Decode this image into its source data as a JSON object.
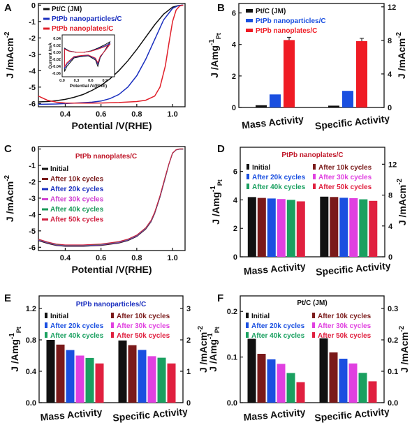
{
  "chart_data": [
    {
      "panel": "A",
      "type": "line",
      "xlabel": "Potential /V(RHE)",
      "ylabel": "J /mAcm",
      "ylabel_sup": "-2",
      "xlim": [
        0.25,
        1.07
      ],
      "ylim": [
        -6.2,
        0.1
      ],
      "xticks": [
        "0.4",
        "0.6",
        "0.8",
        "1.0"
      ],
      "yticks": [
        "0",
        "-1",
        "-2",
        "-3",
        "-4",
        "-5",
        "-6"
      ],
      "series": [
        {
          "name": "Pt/C (JM)",
          "color": "#111111",
          "x": [
            0.25,
            0.3,
            0.35,
            0.4,
            0.45,
            0.5,
            0.55,
            0.6,
            0.65,
            0.7,
            0.75,
            0.8,
            0.85,
            0.9,
            0.95,
            1.0,
            1.03,
            1.06
          ],
          "y": [
            -5.9,
            -5.88,
            -5.83,
            -5.75,
            -5.62,
            -5.45,
            -5.2,
            -4.9,
            -4.5,
            -4.0,
            -3.4,
            -2.7,
            -1.95,
            -1.2,
            -0.55,
            -0.12,
            -0.03,
            0.0
          ]
        },
        {
          "name": "PtPb nanoparticles/C",
          "color": "#1a2fbf",
          "x": [
            0.25,
            0.35,
            0.45,
            0.55,
            0.6,
            0.65,
            0.7,
            0.75,
            0.8,
            0.85,
            0.9,
            0.95,
            1.0,
            1.03,
            1.06
          ],
          "y": [
            -6.05,
            -6.03,
            -5.98,
            -5.92,
            -5.85,
            -5.7,
            -5.45,
            -5.0,
            -4.3,
            -3.3,
            -2.1,
            -0.9,
            -0.2,
            -0.04,
            0.0
          ]
        },
        {
          "name": "PtPb nanoplates/C",
          "color": "#e0202a",
          "x": [
            0.25,
            0.3,
            0.35,
            0.4,
            0.5,
            0.6,
            0.7,
            0.8,
            0.85,
            0.9,
            0.93,
            0.96,
            0.98,
            1.0,
            1.02,
            1.04,
            1.06
          ],
          "y": [
            -5.55,
            -5.8,
            -5.92,
            -5.97,
            -5.98,
            -5.97,
            -5.94,
            -5.88,
            -5.8,
            -5.55,
            -5.0,
            -3.7,
            -2.3,
            -1.0,
            -0.3,
            -0.05,
            0.0
          ]
        }
      ],
      "inset": {
        "ylabel": "Current /mA",
        "xlabel": "Potential /V(RHE)",
        "xticks": [
          "0.0",
          "0.3",
          "0.6",
          "0.9"
        ],
        "yticks": [
          "0.04",
          "0.02",
          "0.00",
          "-0.02",
          "-0.04",
          "-0.06"
        ],
        "xlim": [
          0.0,
          1.1
        ],
        "ylim": [
          -0.07,
          0.05
        ]
      }
    },
    {
      "panel": "B",
      "type": "bar",
      "categories": [
        "Mass Activity",
        "Specific Activity"
      ],
      "ylabel_left": "J /Amg",
      "ylabel_left_sup": "-1",
      "ylabel_left_sub": "Pt",
      "ylabel_right": "J /mAcm",
      "ylabel_right_sup": "-2",
      "ylim_left": [
        0,
        6.6
      ],
      "ylim_right": [
        0,
        12.4
      ],
      "yticks_left": [
        "0",
        "2",
        "4",
        "6"
      ],
      "yticks_right": [
        "0",
        "4",
        "8",
        "12"
      ],
      "series": [
        {
          "name": "Pt/C (JM)",
          "color": "#111111",
          "values": [
            0.14,
            0.22
          ]
        },
        {
          "name": "PtPb nanoparticles/C",
          "color": "#1a4fe0",
          "values": [
            0.83,
            1.98
          ]
        },
        {
          "name": "PtPb nanoplates/C",
          "color": "#ef1b24",
          "values": [
            4.28,
            7.91
          ]
        }
      ]
    },
    {
      "panel": "C",
      "type": "line",
      "title": "PtPb nanoplates/C",
      "xlabel": "Potential /V(RHE)",
      "ylabel": "J /mAcm",
      "ylabel_sup": "-2",
      "xlim": [
        0.25,
        1.07
      ],
      "ylim": [
        -6.2,
        0.15
      ],
      "xticks": [
        "0.4",
        "0.6",
        "0.8",
        "1.0"
      ],
      "yticks": [
        "0",
        "-1",
        "-2",
        "-3",
        "-4",
        "-5",
        "-6"
      ],
      "legend": [
        "Initial",
        "After 10k cycles",
        "After 20k cycles",
        "After 30k cycles",
        "After 40k cycles",
        "After 50k cycles"
      ],
      "colors": [
        "#111111",
        "#7a1a1a",
        "#1a2fbf",
        "#d040d0",
        "#1a9a5a",
        "#d02040"
      ],
      "curve_x": [
        0.25,
        0.3,
        0.35,
        0.4,
        0.5,
        0.6,
        0.7,
        0.75,
        0.8,
        0.85,
        0.88,
        0.9,
        0.93,
        0.96,
        0.98,
        1.0,
        1.02,
        1.04,
        1.06
      ],
      "curve_y": [
        -5.55,
        -5.72,
        -5.85,
        -5.9,
        -5.9,
        -5.85,
        -5.7,
        -5.55,
        -5.3,
        -4.85,
        -4.4,
        -3.9,
        -2.9,
        -1.7,
        -0.9,
        -0.25,
        -0.05,
        0.0,
        0.0
      ]
    },
    {
      "panel": "D",
      "type": "bar",
      "title": "PtPb nanoplates/C",
      "categories": [
        "Mass Activity",
        "Specific Activity"
      ],
      "ylabel_left": "J /Amg",
      "ylabel_left_sup": "-1",
      "ylabel_left_sub": "Pt",
      "ylabel_right": "J /mAcm",
      "ylabel_right_sup": "-2",
      "ylim_left": [
        0,
        7.7
      ],
      "ylim_right": [
        0,
        14.2
      ],
      "yticks_left": [
        "0",
        "2",
        "4",
        "6"
      ],
      "yticks_right": [
        "0",
        "4",
        "8",
        "12"
      ],
      "series_names": [
        "Initial",
        "After 10k cycles",
        "After 20k cycles",
        "After 30k cycles",
        "After 40k cycles",
        "After 50k cycles"
      ],
      "colors": [
        "#111111",
        "#7a1a1a",
        "#1a4fe0",
        "#e040e0",
        "#1aa060",
        "#e0203f"
      ],
      "values": [
        [
          4.2,
          4.14,
          4.1,
          4.06,
          4.0,
          3.9
        ],
        [
          7.8,
          7.75,
          7.65,
          7.6,
          7.45,
          7.25
        ]
      ]
    },
    {
      "panel": "E",
      "type": "bar",
      "title": "PtPb nanoparticles/C",
      "categories": [
        "Mass Activity",
        "Specific Activity"
      ],
      "ylabel_left": "J /Amg",
      "ylabel_left_sup": "-1",
      "ylabel_left_sub": "Pt",
      "ylabel_right": "J /mAcm",
      "ylabel_right_sup": "-2",
      "ylim_left": [
        0,
        1.36
      ],
      "ylim_right": [
        0,
        3.4
      ],
      "yticks_left": [
        "0.0",
        "0.4",
        "0.8",
        "1.2"
      ],
      "yticks_right": [
        "0",
        "1",
        "2",
        "3"
      ],
      "series_names": [
        "Initial",
        "After 10k cycles",
        "After 20k cycles",
        "After 30k cycles",
        "After 40k cycles",
        "After 50k cycles"
      ],
      "colors": [
        "#111111",
        "#7a1a1a",
        "#1a4fe0",
        "#e040e0",
        "#1aa060",
        "#e0203f"
      ],
      "values": [
        [
          0.8,
          0.74,
          0.67,
          0.6,
          0.57,
          0.5
        ],
        [
          1.98,
          1.83,
          1.68,
          1.48,
          1.43,
          1.25
        ]
      ]
    },
    {
      "panel": "F",
      "type": "bar",
      "title": "Pt/C (JM)",
      "categories": [
        "Mass Activity",
        "Specific Activity"
      ],
      "ylabel_left": "J /Amg",
      "ylabel_left_sup": "-1",
      "ylabel_left_sub": "Pt",
      "ylabel_right": "J /mAcm",
      "ylabel_right_sup": "-2",
      "ylim_left": [
        0,
        0.234
      ],
      "ylim_right": [
        0,
        0.34
      ],
      "yticks_left": [
        "0.0",
        "0.1",
        "0.2"
      ],
      "yticks_right": [
        "0.0",
        "0.1",
        "0.2",
        "0.3"
      ],
      "series_names": [
        "Initial",
        "After 10k cycles",
        "After 20k cycles",
        "After 30k cycles",
        "After 40k cycles",
        "After 50k cycles"
      ],
      "colors": [
        "#111111",
        "#7a1a1a",
        "#1a4fe0",
        "#e040e0",
        "#1aa060",
        "#e0203f"
      ],
      "values": [
        [
          0.14,
          0.107,
          0.095,
          0.085,
          0.065,
          0.045
        ],
        [
          0.205,
          0.16,
          0.14,
          0.125,
          0.095,
          0.068
        ]
      ]
    }
  ]
}
